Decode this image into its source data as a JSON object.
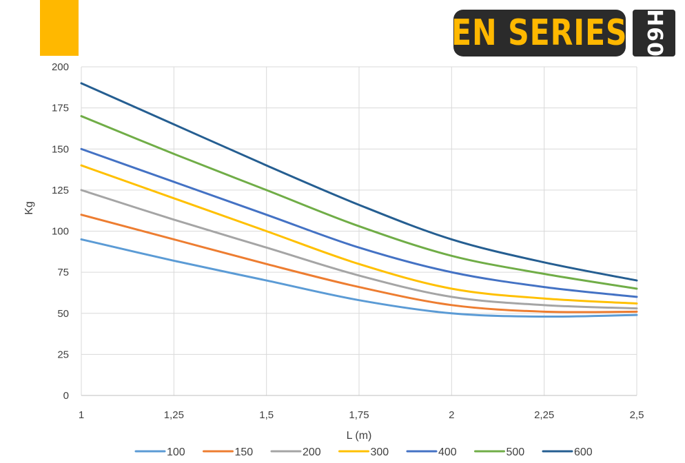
{
  "header": {
    "brand_text": "EN SERIES",
    "model_text": "H60",
    "accent_color": "#FFB800",
    "badge_color": "#2b2b2b"
  },
  "chart_data": {
    "type": "line",
    "title": "",
    "xlabel": "L (m)",
    "ylabel": "Kg",
    "x": [
      1,
      1.25,
      1.5,
      1.75,
      2,
      2.25,
      2.5
    ],
    "x_tick_labels": [
      "1",
      "1,25",
      "1,5",
      "1,75",
      "2",
      "2,25",
      "2,5"
    ],
    "y_ticks": [
      0,
      25,
      50,
      75,
      100,
      125,
      150,
      175,
      200
    ],
    "xlim": [
      1,
      2.5
    ],
    "ylim": [
      0,
      200
    ],
    "grid": true,
    "legend_position": "bottom",
    "series": [
      {
        "name": "100",
        "color": "#5B9BD5",
        "values": [
          95,
          82,
          70,
          58,
          50,
          48,
          49
        ]
      },
      {
        "name": "150",
        "color": "#ED7D31",
        "values": [
          110,
          95,
          80,
          66,
          55,
          51,
          51
        ]
      },
      {
        "name": "200",
        "color": "#A5A5A5",
        "values": [
          125,
          107,
          90,
          73,
          60,
          55,
          53
        ]
      },
      {
        "name": "300",
        "color": "#FFC000",
        "values": [
          140,
          120,
          100,
          80,
          65,
          59,
          56
        ]
      },
      {
        "name": "400",
        "color": "#4472C4",
        "values": [
          150,
          130,
          110,
          90,
          75,
          66,
          60
        ]
      },
      {
        "name": "500",
        "color": "#70AD47",
        "values": [
          170,
          147,
          125,
          103,
          85,
          74,
          65
        ]
      },
      {
        "name": "600",
        "color": "#255E91",
        "values": [
          190,
          165,
          140,
          116,
          95,
          81,
          70
        ]
      }
    ]
  }
}
